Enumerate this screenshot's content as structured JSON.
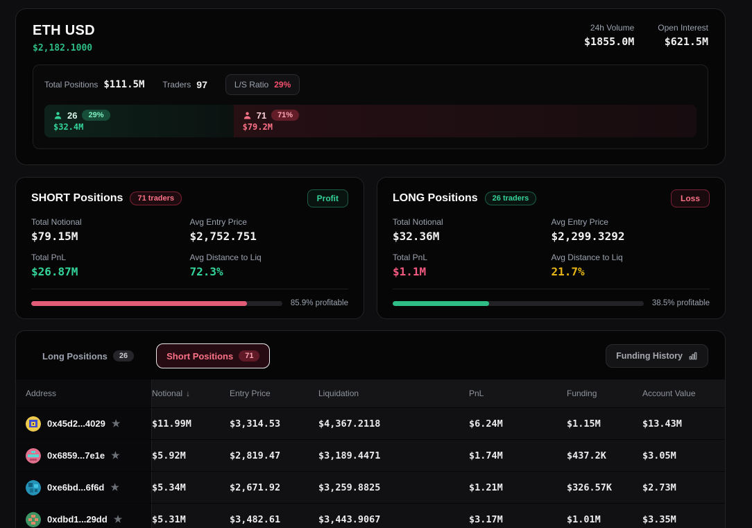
{
  "colors": {
    "green": "#2ebd85",
    "bright_green": "#34d399",
    "pink": "#fb7185",
    "red": "#f43f5e",
    "yellow": "#e7b515",
    "bar_red": "#e25c78"
  },
  "icons": {
    "star": "★",
    "sort_desc": "↓"
  },
  "header": {
    "symbol": "ETH USD",
    "price": "$2,182.1000",
    "stats": [
      {
        "label": "24h Volume",
        "value": "$1855.0M"
      },
      {
        "label": "Open Interest",
        "value": "$621.5M"
      }
    ],
    "summary": {
      "total_positions_label": "Total Positions",
      "total_positions": "$111.5M",
      "traders_label": "Traders",
      "traders": "97",
      "ls_ratio_label": "L/S Ratio",
      "ls_ratio": "29%"
    },
    "ratio_bar": {
      "long": {
        "count": "26",
        "pct": "29%",
        "notional": "$32.4M",
        "width_pct": 29
      },
      "short": {
        "count": "71",
        "pct": "71%",
        "notional": "$79.2M",
        "width_pct": 71
      }
    }
  },
  "short_card": {
    "title": "SHORT Positions",
    "traders_badge": "71 traders",
    "status_badge": "Profit",
    "stats": [
      {
        "label": "Total Notional",
        "value": "$79.15M"
      },
      {
        "label": "Avg Entry Price",
        "value": "$2,752.751"
      },
      {
        "label": "Total PnL",
        "value": "$26.87M"
      },
      {
        "label": "Avg Distance to Liq",
        "value": "72.3%"
      }
    ],
    "profitable_pct": 85.9,
    "profitable_label": "85.9% profitable"
  },
  "long_card": {
    "title": "LONG Positions",
    "traders_badge": "26 traders",
    "status_badge": "Loss",
    "stats": [
      {
        "label": "Total Notional",
        "value": "$32.36M"
      },
      {
        "label": "Avg Entry Price",
        "value": "$2,299.3292"
      },
      {
        "label": "Total PnL",
        "value": "$1.1M"
      },
      {
        "label": "Avg Distance to Liq",
        "value": "21.7%"
      }
    ],
    "profitable_pct": 38.5,
    "profitable_label": "38.5% profitable"
  },
  "positions": {
    "tabs": [
      {
        "label": "Long Positions",
        "count": "26"
      },
      {
        "label": "Short Positions",
        "count": "71"
      }
    ],
    "funding_button": "Funding History",
    "table": {
      "columns": [
        "Address",
        "Notional",
        "Entry Price",
        "Liquidation",
        "PnL",
        "Funding",
        "Account Value"
      ],
      "sort_column": "Notional",
      "rows": [
        {
          "address": "0x45d2...4029",
          "notional": "$11.99M",
          "entry": "$3,314.53",
          "liq": "$4,367.2118",
          "pnl": "$6.24M",
          "funding": "$1.15M",
          "account": "$13.43M"
        },
        {
          "address": "0x6859...7e1e",
          "notional": "$5.92M",
          "entry": "$2,819.47",
          "liq": "$3,189.4471",
          "pnl": "$1.74M",
          "funding": "$437.2K",
          "account": "$3.05M"
        },
        {
          "address": "0xe6bd...6f6d",
          "notional": "$5.34M",
          "entry": "$2,671.92",
          "liq": "$3,259.8825",
          "pnl": "$1.21M",
          "funding": "$326.57K",
          "account": "$2.73M"
        },
        {
          "address": "0xdbd1...29dd",
          "notional": "$5.31M",
          "entry": "$3,482.61",
          "liq": "$3,443.9067",
          "pnl": "$3.17M",
          "funding": "$1.01M",
          "account": "$3.35M"
        }
      ]
    }
  }
}
